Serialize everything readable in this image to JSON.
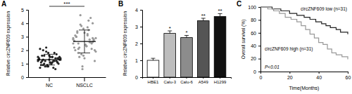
{
  "chart_data": [
    {
      "type": "scatter",
      "title": "A",
      "y_label": "Relative circZNF609 expression",
      "categories": [
        "NC",
        "NSCLC"
      ],
      "values": [
        [
          1.2,
          1.5,
          0.9,
          1.1,
          1.8,
          1.3,
          0.7,
          1.0,
          1.4,
          1.6,
          2.1,
          1.2,
          0.8,
          1.3,
          1.5,
          1.1,
          0.6,
          1.9,
          1.4,
          1.0,
          1.2,
          1.7,
          0.9,
          1.3,
          1.5,
          2.0,
          1.1,
          0.8,
          1.4,
          1.2,
          1.6,
          1.0,
          1.3,
          0.7,
          1.8,
          1.2,
          1.5,
          1.1,
          0.9,
          1.4,
          2.2,
          1.3,
          1.0,
          1.6,
          1.2,
          0.8,
          1.5,
          1.1,
          1.3,
          1.4
        ],
        [
          2.5,
          3.1,
          1.8,
          2.9,
          3.6,
          2.2,
          4.2,
          1.5,
          2.7,
          3.3,
          2.0,
          2.8,
          4.6,
          1.2,
          2.4,
          3.0,
          2.6,
          3.8,
          1.9,
          2.3,
          3.4,
          2.1,
          0.8,
          2.9,
          3.2,
          2.5,
          4.0,
          1.6,
          2.7,
          3.5,
          2.2,
          2.8,
          1.4,
          3.1,
          2.6,
          3.9,
          2.0,
          2.4,
          3.0,
          4.4,
          1.7,
          2.9,
          2.3,
          3.3,
          2.5,
          0.6,
          2.8,
          3.7,
          2.1,
          2.6
        ]
      ],
      "means": [
        1.3,
        2.65
      ],
      "errors": [
        0.4,
        0.85
      ],
      "colors": [
        "#222222",
        "#999999"
      ],
      "marker": "circle",
      "annotations": [
        "***"
      ],
      "ylim": [
        0,
        5
      ],
      "yticks": [
        0,
        1,
        2,
        3,
        4,
        5
      ]
    },
    {
      "type": "bar",
      "title": "B",
      "y_label": "Relative circZNF609 expression",
      "categories": [
        "HBE1",
        "Calu-3",
        "Calu-6",
        "A549",
        "H1299"
      ],
      "values": [
        1.0,
        2.6,
        2.35,
        3.35,
        3.6
      ],
      "errors": [
        0.12,
        0.15,
        0.13,
        0.15,
        0.17
      ],
      "colors": [
        "#ffffff",
        "#bdbdbd",
        "#8c8c8c",
        "#555555",
        "#111111"
      ],
      "significance": [
        null,
        "*",
        "*",
        "**",
        "**"
      ],
      "ylim": [
        0,
        4
      ],
      "yticks": [
        0,
        1,
        2,
        3,
        4
      ]
    },
    {
      "type": "line",
      "title": "C",
      "x_label": "Time(Months)",
      "y_label": "Overall survival (%)",
      "line_style": "step",
      "series": [
        {
          "name": "circZNF609 low (n=31)",
          "color": "#222222",
          "x": [
            0,
            8,
            14,
            20,
            25,
            30,
            34,
            38,
            42,
            45,
            48,
            52,
            55,
            60
          ],
          "values": [
            100,
            97,
            94,
            90,
            87,
            84,
            81,
            77,
            74,
            71,
            68,
            65,
            61,
            58
          ]
        },
        {
          "name": "circZNF609 high (n=31)",
          "color": "#999999",
          "x": [
            0,
            5,
            9,
            13,
            17,
            21,
            25,
            28,
            31,
            34,
            37,
            40,
            43,
            46,
            49,
            52,
            56,
            60
          ],
          "values": [
            100,
            97,
            94,
            90,
            84,
            81,
            77,
            71,
            65,
            58,
            52,
            45,
            42,
            35,
            29,
            26,
            23,
            19
          ]
        }
      ],
      "annotations": [
        "P<0.01"
      ],
      "xlim": [
        0,
        60
      ],
      "xticks": [
        0,
        20,
        40,
        60
      ],
      "ylim": [
        0,
        100
      ],
      "yticks": [
        0,
        20,
        40,
        60,
        80,
        100
      ]
    }
  ]
}
